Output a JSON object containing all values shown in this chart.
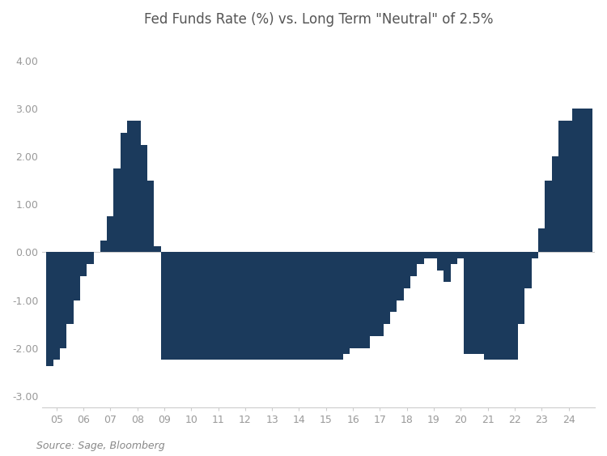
{
  "title": "Fed Funds Rate (%) vs. Long Term \"Neutral\" of 2.5%",
  "source": "Source: Sage, Bloomberg",
  "bar_color": "#1b3a5c",
  "background_color": "#ffffff",
  "ylim": [
    -3.25,
    4.5
  ],
  "yticks": [
    -3.0,
    -2.0,
    -1.0,
    0.0,
    1.0,
    2.0,
    3.0,
    4.0
  ],
  "x_labels": [
    "05",
    "06",
    "07",
    "08",
    "09",
    "10",
    "11",
    "12",
    "13",
    "14",
    "15",
    "16",
    "17",
    "18",
    "19",
    "20",
    "21",
    "22",
    "23",
    "24"
  ],
  "quarters_data": [
    [
      2004.75,
      -2.38
    ],
    [
      2005.0,
      -2.25
    ],
    [
      2005.25,
      -2.0
    ],
    [
      2005.5,
      -1.5
    ],
    [
      2005.75,
      -1.0
    ],
    [
      2006.0,
      -0.5
    ],
    [
      2006.25,
      -0.25
    ],
    [
      2006.5,
      0.0
    ],
    [
      2006.75,
      0.25
    ],
    [
      2007.0,
      0.75
    ],
    [
      2007.25,
      1.75
    ],
    [
      2007.5,
      2.5
    ],
    [
      2007.75,
      2.75
    ],
    [
      2008.0,
      2.75
    ],
    [
      2008.25,
      2.25
    ],
    [
      2008.5,
      1.5
    ],
    [
      2008.75,
      0.12
    ],
    [
      2009.0,
      -2.25
    ],
    [
      2009.25,
      -2.25
    ],
    [
      2009.5,
      -2.25
    ],
    [
      2009.75,
      -2.25
    ],
    [
      2010.0,
      -2.25
    ],
    [
      2010.25,
      -2.25
    ],
    [
      2010.5,
      -2.25
    ],
    [
      2010.75,
      -2.25
    ],
    [
      2011.0,
      -2.25
    ],
    [
      2011.25,
      -2.25
    ],
    [
      2011.5,
      -2.25
    ],
    [
      2011.75,
      -2.25
    ],
    [
      2012.0,
      -2.25
    ],
    [
      2012.25,
      -2.25
    ],
    [
      2012.5,
      -2.25
    ],
    [
      2012.75,
      -2.25
    ],
    [
      2013.0,
      -2.25
    ],
    [
      2013.25,
      -2.25
    ],
    [
      2013.5,
      -2.25
    ],
    [
      2013.75,
      -2.25
    ],
    [
      2014.0,
      -2.25
    ],
    [
      2014.25,
      -2.25
    ],
    [
      2014.5,
      -2.25
    ],
    [
      2014.75,
      -2.25
    ],
    [
      2015.0,
      -2.25
    ],
    [
      2015.25,
      -2.25
    ],
    [
      2015.5,
      -2.25
    ],
    [
      2015.75,
      -2.12
    ],
    [
      2016.0,
      -2.0
    ],
    [
      2016.25,
      -2.0
    ],
    [
      2016.5,
      -2.0
    ],
    [
      2016.75,
      -1.75
    ],
    [
      2017.0,
      -1.75
    ],
    [
      2017.25,
      -1.5
    ],
    [
      2017.5,
      -1.25
    ],
    [
      2017.75,
      -1.0
    ],
    [
      2018.0,
      -0.75
    ],
    [
      2018.25,
      -0.5
    ],
    [
      2018.5,
      -0.25
    ],
    [
      2018.75,
      -0.12
    ],
    [
      2019.0,
      -0.12
    ],
    [
      2019.25,
      -0.38
    ],
    [
      2019.5,
      -0.62
    ],
    [
      2019.75,
      -0.25
    ],
    [
      2020.0,
      -0.12
    ],
    [
      2020.25,
      -2.12
    ],
    [
      2020.5,
      -2.12
    ],
    [
      2020.75,
      -2.12
    ],
    [
      2021.0,
      -2.25
    ],
    [
      2021.25,
      -2.25
    ],
    [
      2021.5,
      -2.25
    ],
    [
      2021.75,
      -2.25
    ],
    [
      2022.0,
      -2.25
    ],
    [
      2022.25,
      -1.5
    ],
    [
      2022.5,
      -0.75
    ],
    [
      2022.75,
      -0.12
    ],
    [
      2023.0,
      0.5
    ],
    [
      2023.25,
      1.5
    ],
    [
      2023.5,
      2.0
    ],
    [
      2023.75,
      2.75
    ],
    [
      2024.0,
      2.75
    ],
    [
      2024.25,
      3.0
    ],
    [
      2024.5,
      3.0
    ],
    [
      2024.75,
      3.0
    ]
  ],
  "title_fontsize": 12,
  "source_fontsize": 9,
  "tick_fontsize": 9
}
